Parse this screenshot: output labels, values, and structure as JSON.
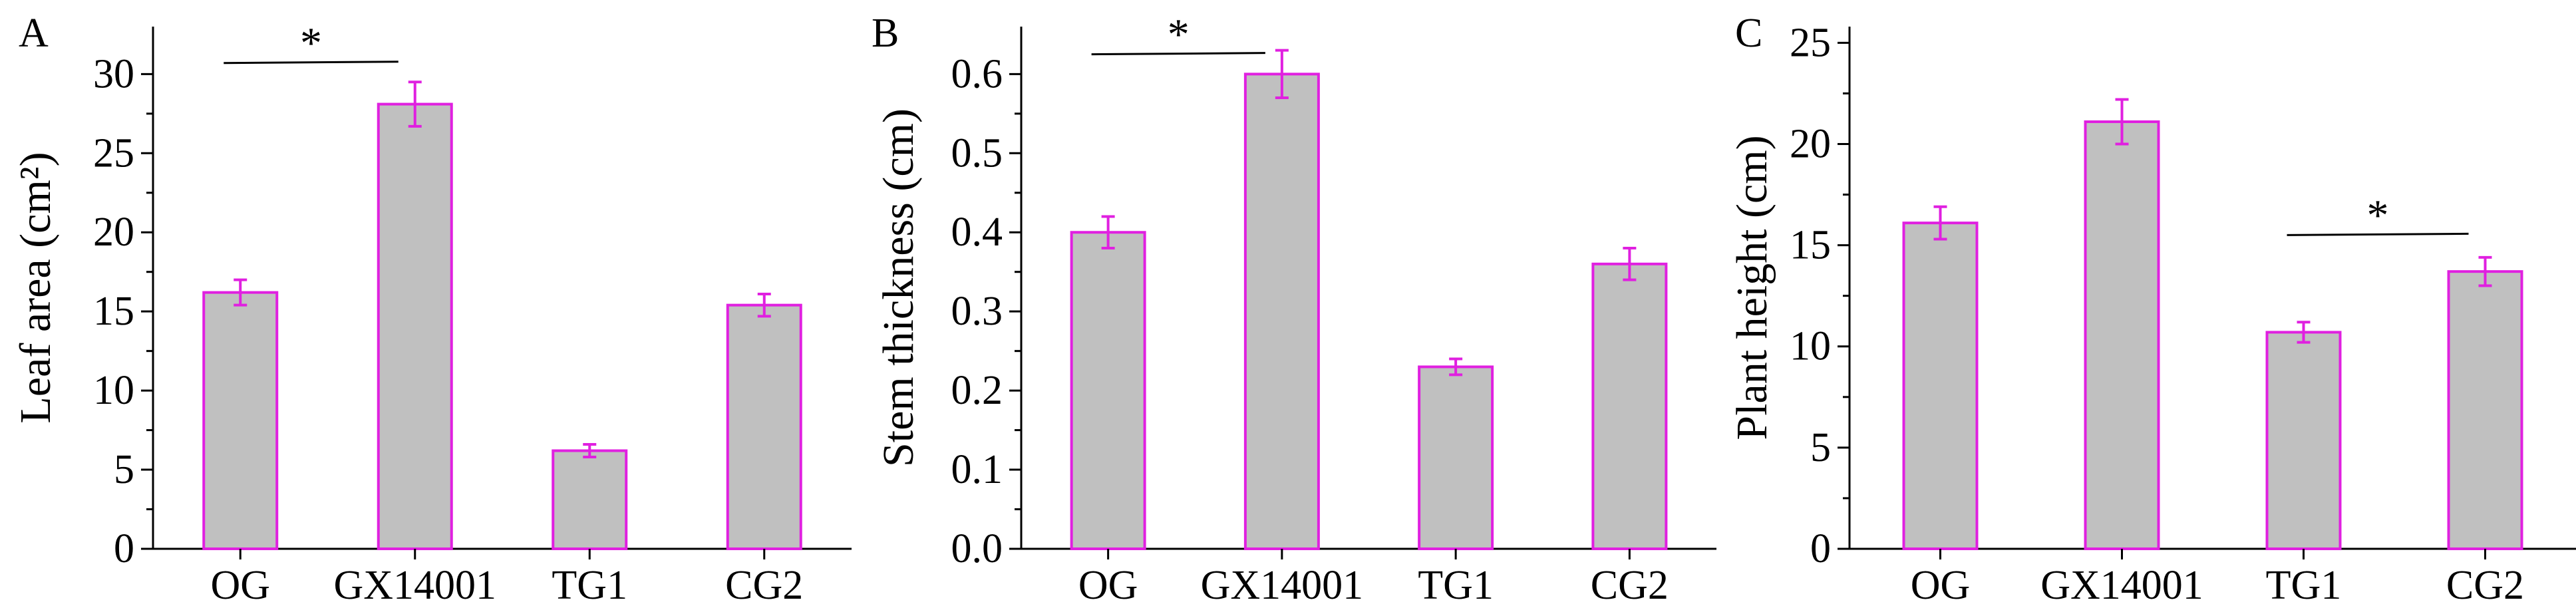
{
  "colors": {
    "bar_fill": "#c0c0c0",
    "bar_edge": "#e020e0",
    "error_bar": "#e020e0",
    "axis": "#000000"
  },
  "chart_data": [
    {
      "type": "bar",
      "panel": "A",
      "ylabel": "Leaf area (cm²)",
      "categories": [
        "OG",
        "GX14001",
        "TG1",
        "CG2"
      ],
      "values": [
        16.2,
        28.1,
        6.2,
        15.4
      ],
      "errors": [
        0.8,
        1.4,
        0.4,
        0.7
      ],
      "ylim": [
        0,
        33
      ],
      "yticks": [
        0,
        5,
        10,
        15,
        20,
        25,
        30
      ],
      "significance": [
        {
          "from": "OG",
          "to": "GX14001",
          "label": "*",
          "y": 30.7
        }
      ]
    },
    {
      "type": "bar",
      "panel": "B",
      "ylabel": "Stem thickness (cm)",
      "categories": [
        "OG",
        "GX14001",
        "TG1",
        "CG2"
      ],
      "values": [
        0.4,
        0.6,
        0.23,
        0.36
      ],
      "errors": [
        0.02,
        0.03,
        0.01,
        0.02
      ],
      "ylim": [
        0,
        0.66
      ],
      "yticks": [
        "0.0",
        "0.1",
        "0.2",
        "0.3",
        "0.4",
        "0.5",
        "0.6"
      ],
      "significance": [
        {
          "from": "OG",
          "to": "GX14001",
          "label": "*",
          "y": 0.625
        }
      ]
    },
    {
      "type": "bar",
      "panel": "C",
      "ylabel": "Plant height (cm)",
      "categories": [
        "OG",
        "GX14001",
        "TG1",
        "CG2"
      ],
      "values": [
        16.1,
        21.1,
        10.7,
        13.7
      ],
      "errors": [
        0.8,
        1.1,
        0.5,
        0.7
      ],
      "ylim": [
        0,
        25.8
      ],
      "yticks": [
        0,
        5,
        10,
        15,
        20,
        25
      ],
      "significance": [
        {
          "from": "TG1",
          "to": "CG2",
          "label": "*",
          "y": 15.5
        }
      ]
    }
  ]
}
